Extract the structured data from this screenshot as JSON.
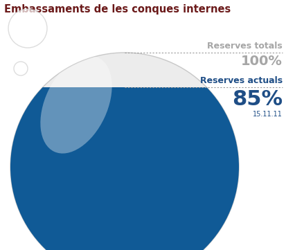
{
  "chart_data": {
    "type": "gauge",
    "title": "Embassaments de les conques internes",
    "categories": [
      "Reserves totals",
      "Reserves actuals"
    ],
    "values": [
      100,
      85
    ],
    "value_labels": [
      "100%",
      "85%"
    ],
    "colors": [
      "#a6a6a6",
      "#1f4e86"
    ],
    "color": "#105a96",
    "annotation": "15.11.11"
  }
}
